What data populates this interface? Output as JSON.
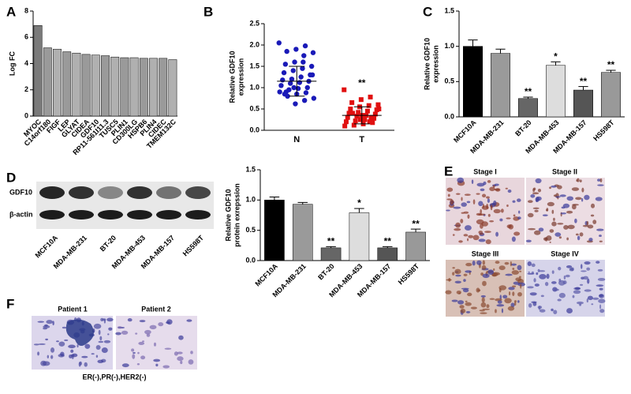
{
  "panels": {
    "letters": [
      "A",
      "B",
      "C",
      "D",
      "E",
      "F"
    ],
    "blot": {
      "rows": [
        "GDF10",
        "β-actin"
      ],
      "lanes": [
        "MCF10A",
        "MDA-MB-231",
        "BT-20",
        "MDA-MB-453",
        "MDA-MB-157",
        "HS598T"
      ]
    },
    "histology": {
      "stages": [
        "Stage I",
        "Stage II",
        "Stage III",
        "Stage IV"
      ]
    },
    "patients": {
      "names": [
        "Patient 1",
        "Patient 2"
      ],
      "caption": "ER(-),PR(-),HER2(-)"
    }
  },
  "chart_data": [
    {
      "type": "bar",
      "ylabel": "Log FC",
      "categories": [
        "MYOC",
        "C14orf180",
        "FIGF",
        "LEP",
        "GLYAT",
        "CIDEA",
        "GDF10",
        "RP11-561I11.3",
        "TUSC5",
        "PLIN1",
        "CD300LG",
        "HSPB6",
        "PLIN4",
        "CIDEC",
        "TMEM132C"
      ],
      "values": [
        6.9,
        5.2,
        5.1,
        4.9,
        4.8,
        4.7,
        4.65,
        4.6,
        4.5,
        4.45,
        4.45,
        4.4,
        4.4,
        4.4,
        4.3
      ],
      "colors": [
        "#7a7a7a",
        "#9a9a9a",
        "#b0b0b0",
        "#9a9a9a",
        "#b0b0b0",
        "#9a9a9a",
        "#b0b0b0",
        "#9a9a9a",
        "#b0b0b0",
        "#9a9a9a",
        "#b0b0b0",
        "#9a9a9a",
        "#b0b0b0",
        "#9a9a9a",
        "#b0b0b0"
      ],
      "ylim": [
        0,
        8
      ],
      "yticks": [
        0,
        2,
        4,
        6,
        8
      ]
    },
    {
      "type": "strip",
      "ylabel": [
        "Relative GDF10",
        "expression"
      ],
      "series": [
        {
          "name": "N",
          "color": "#1a1ab8",
          "marker": "circle",
          "mean": 1.15,
          "sd": 0.35,
          "values": [
            2.05,
            1.98,
            1.9,
            1.85,
            1.82,
            1.75,
            1.6,
            1.55,
            1.5,
            1.45,
            1.4,
            1.35,
            1.3,
            1.25,
            1.2,
            1.18,
            1.15,
            1.12,
            1.1,
            1.05,
            1.0,
            0.98,
            0.95,
            0.9,
            0.88,
            0.85,
            0.8,
            0.75,
            0.7,
            0.62,
            0.9,
            1.3,
            1.6,
            1.0,
            0.85
          ]
        },
        {
          "name": "T",
          "color": "#e01010",
          "marker": "square",
          "mean": 0.35,
          "sd": 0.2,
          "annotation": "**",
          "values": [
            0.95,
            0.78,
            0.72,
            0.65,
            0.6,
            0.58,
            0.55,
            0.5,
            0.48,
            0.45,
            0.42,
            0.4,
            0.38,
            0.35,
            0.33,
            0.3,
            0.28,
            0.25,
            0.22,
            0.2,
            0.18,
            0.15,
            0.12,
            0.1,
            0.3,
            0.35,
            0.4,
            0.5,
            0.2,
            0.25
          ]
        }
      ],
      "ylim": [
        0,
        2.5
      ],
      "yticks": [
        {
          "value": 0,
          "label": "0.0"
        },
        0.5,
        {
          "value": 1,
          "label": "1.0"
        },
        1.5,
        {
          "value": 2,
          "label": "2.0"
        },
        2.5
      ]
    },
    {
      "type": "bar",
      "ylabel": [
        "Relative GDF10",
        "expression"
      ],
      "categories": [
        "MCF10A",
        "MDA-MB-231",
        "BT-20",
        "MDA-MB-453",
        "MDA-MB-157",
        "HS598T"
      ],
      "values": [
        1.0,
        0.9,
        0.26,
        0.73,
        0.38,
        0.63
      ],
      "errors": [
        0.09,
        0.06,
        0.02,
        0.05,
        0.05,
        0.03
      ],
      "annotations": [
        null,
        null,
        "**",
        "*",
        "**",
        "**"
      ],
      "colors": [
        "#000000",
        "#9a9a9a",
        "#666666",
        "#dddddd",
        "#555555",
        "#999999"
      ],
      "ylim": [
        0,
        1.5
      ],
      "yticks": [
        {
          "value": 0,
          "label": "0.0"
        },
        0.5,
        {
          "value": 1,
          "label": "1.0"
        },
        1.5
      ]
    },
    {
      "type": "bar",
      "ylabel": [
        "Relative GDF10",
        "protein exrepssion"
      ],
      "categories": [
        "MCF10A",
        "MDA-MB-231",
        "BT-20",
        "MDA-MB-453",
        "MDA-MB-157",
        "HS598T"
      ],
      "values": [
        1.0,
        0.93,
        0.21,
        0.79,
        0.21,
        0.47
      ],
      "errors": [
        0.05,
        0.03,
        0.02,
        0.07,
        0.02,
        0.05
      ],
      "annotations": [
        null,
        null,
        "**",
        "*",
        "**",
        "**"
      ],
      "colors": [
        "#000000",
        "#9a9a9a",
        "#666666",
        "#dddddd",
        "#555555",
        "#999999"
      ],
      "ylim": [
        0,
        1.5
      ],
      "yticks": [
        {
          "value": 0,
          "label": "0.0"
        },
        0.5,
        {
          "value": 1,
          "label": "1.0"
        },
        1.5
      ]
    }
  ]
}
